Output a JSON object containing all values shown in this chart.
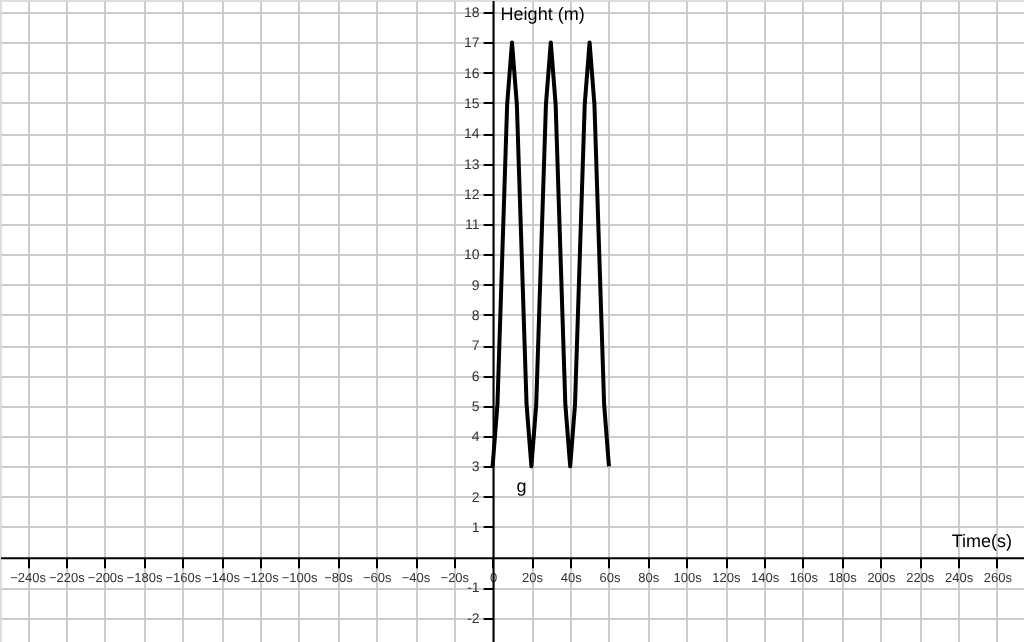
{
  "chart_data": {
    "type": "line",
    "xlabel": "Time(s)",
    "ylabel": "Height (m)",
    "x": [
      0,
      2.5,
      5,
      7.5,
      10,
      12.5,
      15,
      17.5,
      20,
      22.5,
      25,
      27.5,
      30,
      32.5,
      35,
      37.5,
      40,
      42.5,
      45,
      47.5,
      50,
      52.5,
      55,
      57.5,
      60
    ],
    "series": [
      {
        "color": "#000000",
        "values": [
          3,
          5.05,
          10,
          14.95,
          17,
          14.95,
          10,
          5.05,
          3,
          5.05,
          10,
          14.95,
          17,
          14.95,
          10,
          5.05,
          3,
          5.05,
          10,
          14.95,
          17,
          14.95,
          10,
          5.05,
          3
        ]
      }
    ],
    "annotations": [
      "g"
    ],
    "xlim": [
      -254,
      274
    ],
    "ylim": [
      -2.8,
      18.4
    ],
    "xticks": [
      {
        "value": -240,
        "label": "−240s"
      },
      {
        "value": -220,
        "label": "−220s"
      },
      {
        "value": -200,
        "label": "−200s"
      },
      {
        "value": -180,
        "label": "−180s"
      },
      {
        "value": -160,
        "label": "−160s"
      },
      {
        "value": -140,
        "label": "−140s"
      },
      {
        "value": -120,
        "label": "−120s"
      },
      {
        "value": -100,
        "label": "−100s"
      },
      {
        "value": -80,
        "label": "−80s"
      },
      {
        "value": -60,
        "label": "−60s"
      },
      {
        "value": -40,
        "label": "−40s"
      },
      {
        "value": -20,
        "label": "−20s"
      },
      0,
      {
        "value": 20,
        "label": "20s"
      },
      {
        "value": 40,
        "label": "40s"
      },
      {
        "value": 60,
        "label": "60s"
      },
      {
        "value": 80,
        "label": "80s"
      },
      {
        "value": 100,
        "label": "100s"
      },
      {
        "value": 120,
        "label": "120s"
      },
      {
        "value": 140,
        "label": "140s"
      },
      {
        "value": 160,
        "label": "160s"
      },
      {
        "value": 180,
        "label": "180s"
      },
      {
        "value": 200,
        "label": "200s"
      },
      {
        "value": 220,
        "label": "220s"
      },
      {
        "value": 240,
        "label": "240s"
      },
      {
        "value": 260,
        "label": "260s"
      }
    ],
    "yticks": [
      -2,
      -1,
      1,
      2,
      3,
      4,
      5,
      6,
      7,
      8,
      9,
      10,
      11,
      12,
      13,
      14,
      15,
      16,
      17,
      18
    ],
    "grid": true,
    "marker": "none",
    "line_style": "solid"
  }
}
